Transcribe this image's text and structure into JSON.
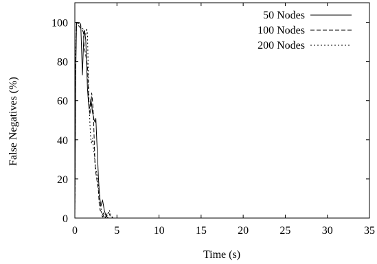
{
  "chart_data": {
    "type": "line",
    "xlabel": "Time (s)",
    "ylabel": "False Negatives (%)",
    "xlim": [
      0,
      35
    ],
    "ylim": [
      0,
      110
    ],
    "xticks": [
      0,
      5,
      10,
      15,
      20,
      25,
      30,
      35
    ],
    "yticks": [
      0,
      20,
      40,
      60,
      80,
      100
    ],
    "grid": false,
    "legend_position": "top-right",
    "series": [
      {
        "name": "50 Nodes",
        "dash": "solid",
        "x": [
          0,
          0.1,
          0.2,
          0.3,
          0.5,
          0.7,
          0.8,
          0.9,
          1.0,
          1.1,
          1.2,
          1.3,
          1.4,
          1.5,
          1.6,
          1.7,
          1.8,
          1.9,
          2.0,
          2.1,
          2.2,
          2.3,
          2.4,
          2.5,
          2.6,
          2.7,
          2.8,
          2.9,
          3.0,
          3.1,
          3.2,
          3.3,
          3.5,
          3.7,
          4.0,
          5.0,
          35
        ],
        "values": [
          2,
          72,
          100,
          100,
          100,
          99,
          86,
          73,
          86,
          96,
          94,
          91,
          78,
          66,
          60,
          56,
          57,
          61,
          58,
          54,
          52,
          50,
          49,
          51,
          40,
          31,
          21,
          14,
          9,
          6,
          8,
          9,
          4,
          1,
          0,
          0,
          0
        ]
      },
      {
        "name": "100 Nodes",
        "dash": "dashed",
        "x": [
          0,
          0.1,
          0.2,
          0.3,
          0.5,
          0.7,
          0.9,
          1.0,
          1.1,
          1.3,
          1.5,
          1.6,
          1.7,
          1.8,
          1.9,
          2.0,
          2.1,
          2.2,
          2.3,
          2.4,
          2.5,
          2.6,
          2.7,
          2.8,
          2.9,
          3.0,
          3.2,
          3.4,
          3.6,
          3.8,
          4.0,
          4.2,
          4.5,
          5.0,
          35
        ],
        "values": [
          1,
          80,
          100,
          99,
          98,
          97,
          96,
          95,
          88,
          83,
          78,
          66,
          56,
          53,
          56,
          64,
          60,
          53,
          40,
          27,
          23,
          20,
          17,
          14,
          7,
          4,
          3,
          1,
          0,
          2,
          3,
          1,
          0,
          0,
          0
        ]
      },
      {
        "name": "200 Nodes",
        "dash": "dotted",
        "x": [
          0,
          0.1,
          0.2,
          0.3,
          0.5,
          0.7,
          0.9,
          1.1,
          1.3,
          1.4,
          1.5,
          1.6,
          1.7,
          1.8,
          1.9,
          2.0,
          2.1,
          2.2,
          2.3,
          2.4,
          2.5,
          2.6,
          2.7,
          2.8,
          2.9,
          3.0,
          3.1,
          3.2,
          3.3,
          3.4,
          3.5,
          3.7,
          3.9,
          4.1,
          4.3,
          4.6,
          5.0,
          35
        ],
        "values": [
          1,
          85,
          100,
          100,
          99,
          98,
          97,
          96,
          94,
          97,
          94,
          74,
          58,
          47,
          40,
          38,
          41,
          36,
          33,
          28,
          25,
          23,
          20,
          16,
          12,
          8,
          5,
          2,
          0,
          3,
          1,
          0,
          2,
          4,
          1,
          0,
          0,
          0
        ]
      }
    ]
  }
}
